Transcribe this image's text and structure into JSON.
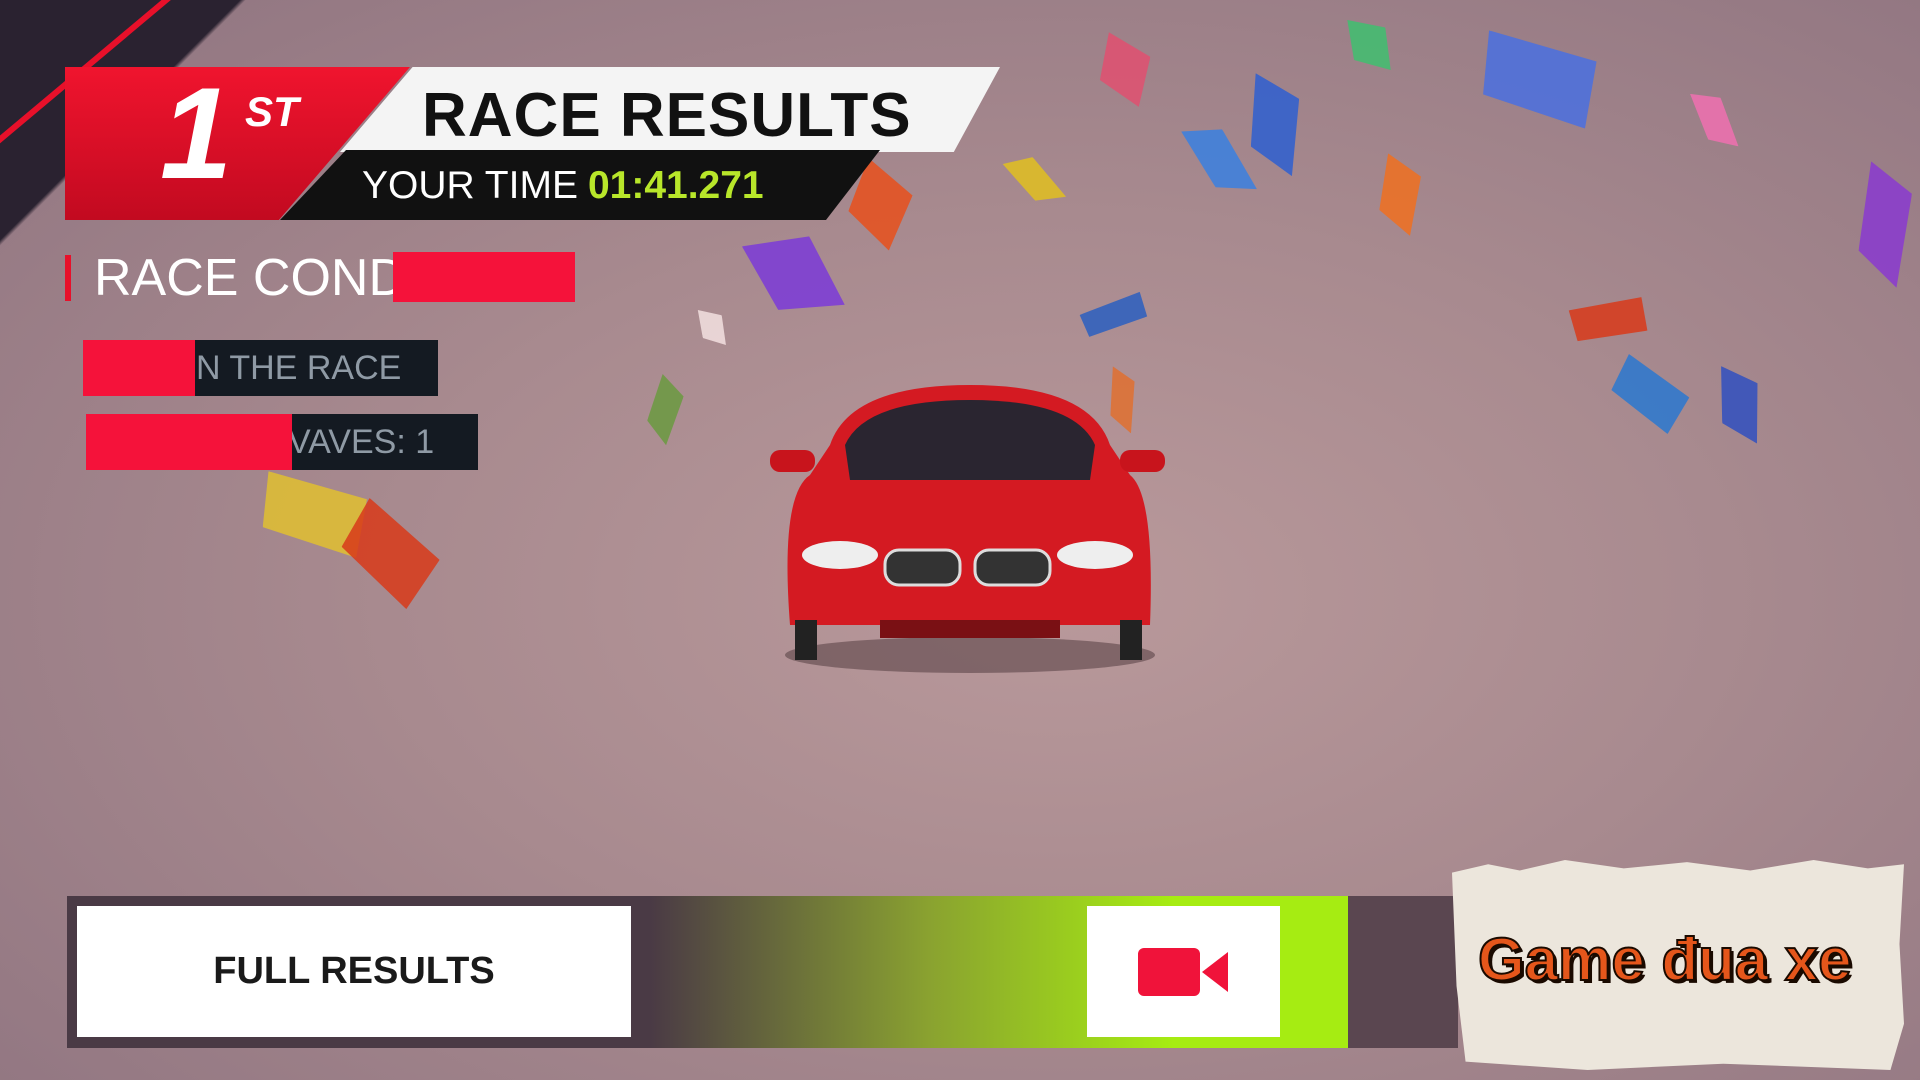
{
  "header": {
    "position": "1",
    "position_suffix": "ST",
    "title": "RACE RESULTS",
    "time_label": "YOUR TIME",
    "time_value": "01:41.271"
  },
  "conditions": {
    "heading": "RACE COND",
    "rows": [
      {
        "text": "N THE RACE"
      },
      {
        "text": "VAVES: 1"
      }
    ]
  },
  "actions": {
    "full_results_label": "FULL RESULTS",
    "replay_icon": "video-camera-icon"
  },
  "watermark": "Game đua xe",
  "colors": {
    "accent_red": "#e8102a",
    "time_green": "#b8e62a",
    "action_green": "#a6ec12"
  }
}
